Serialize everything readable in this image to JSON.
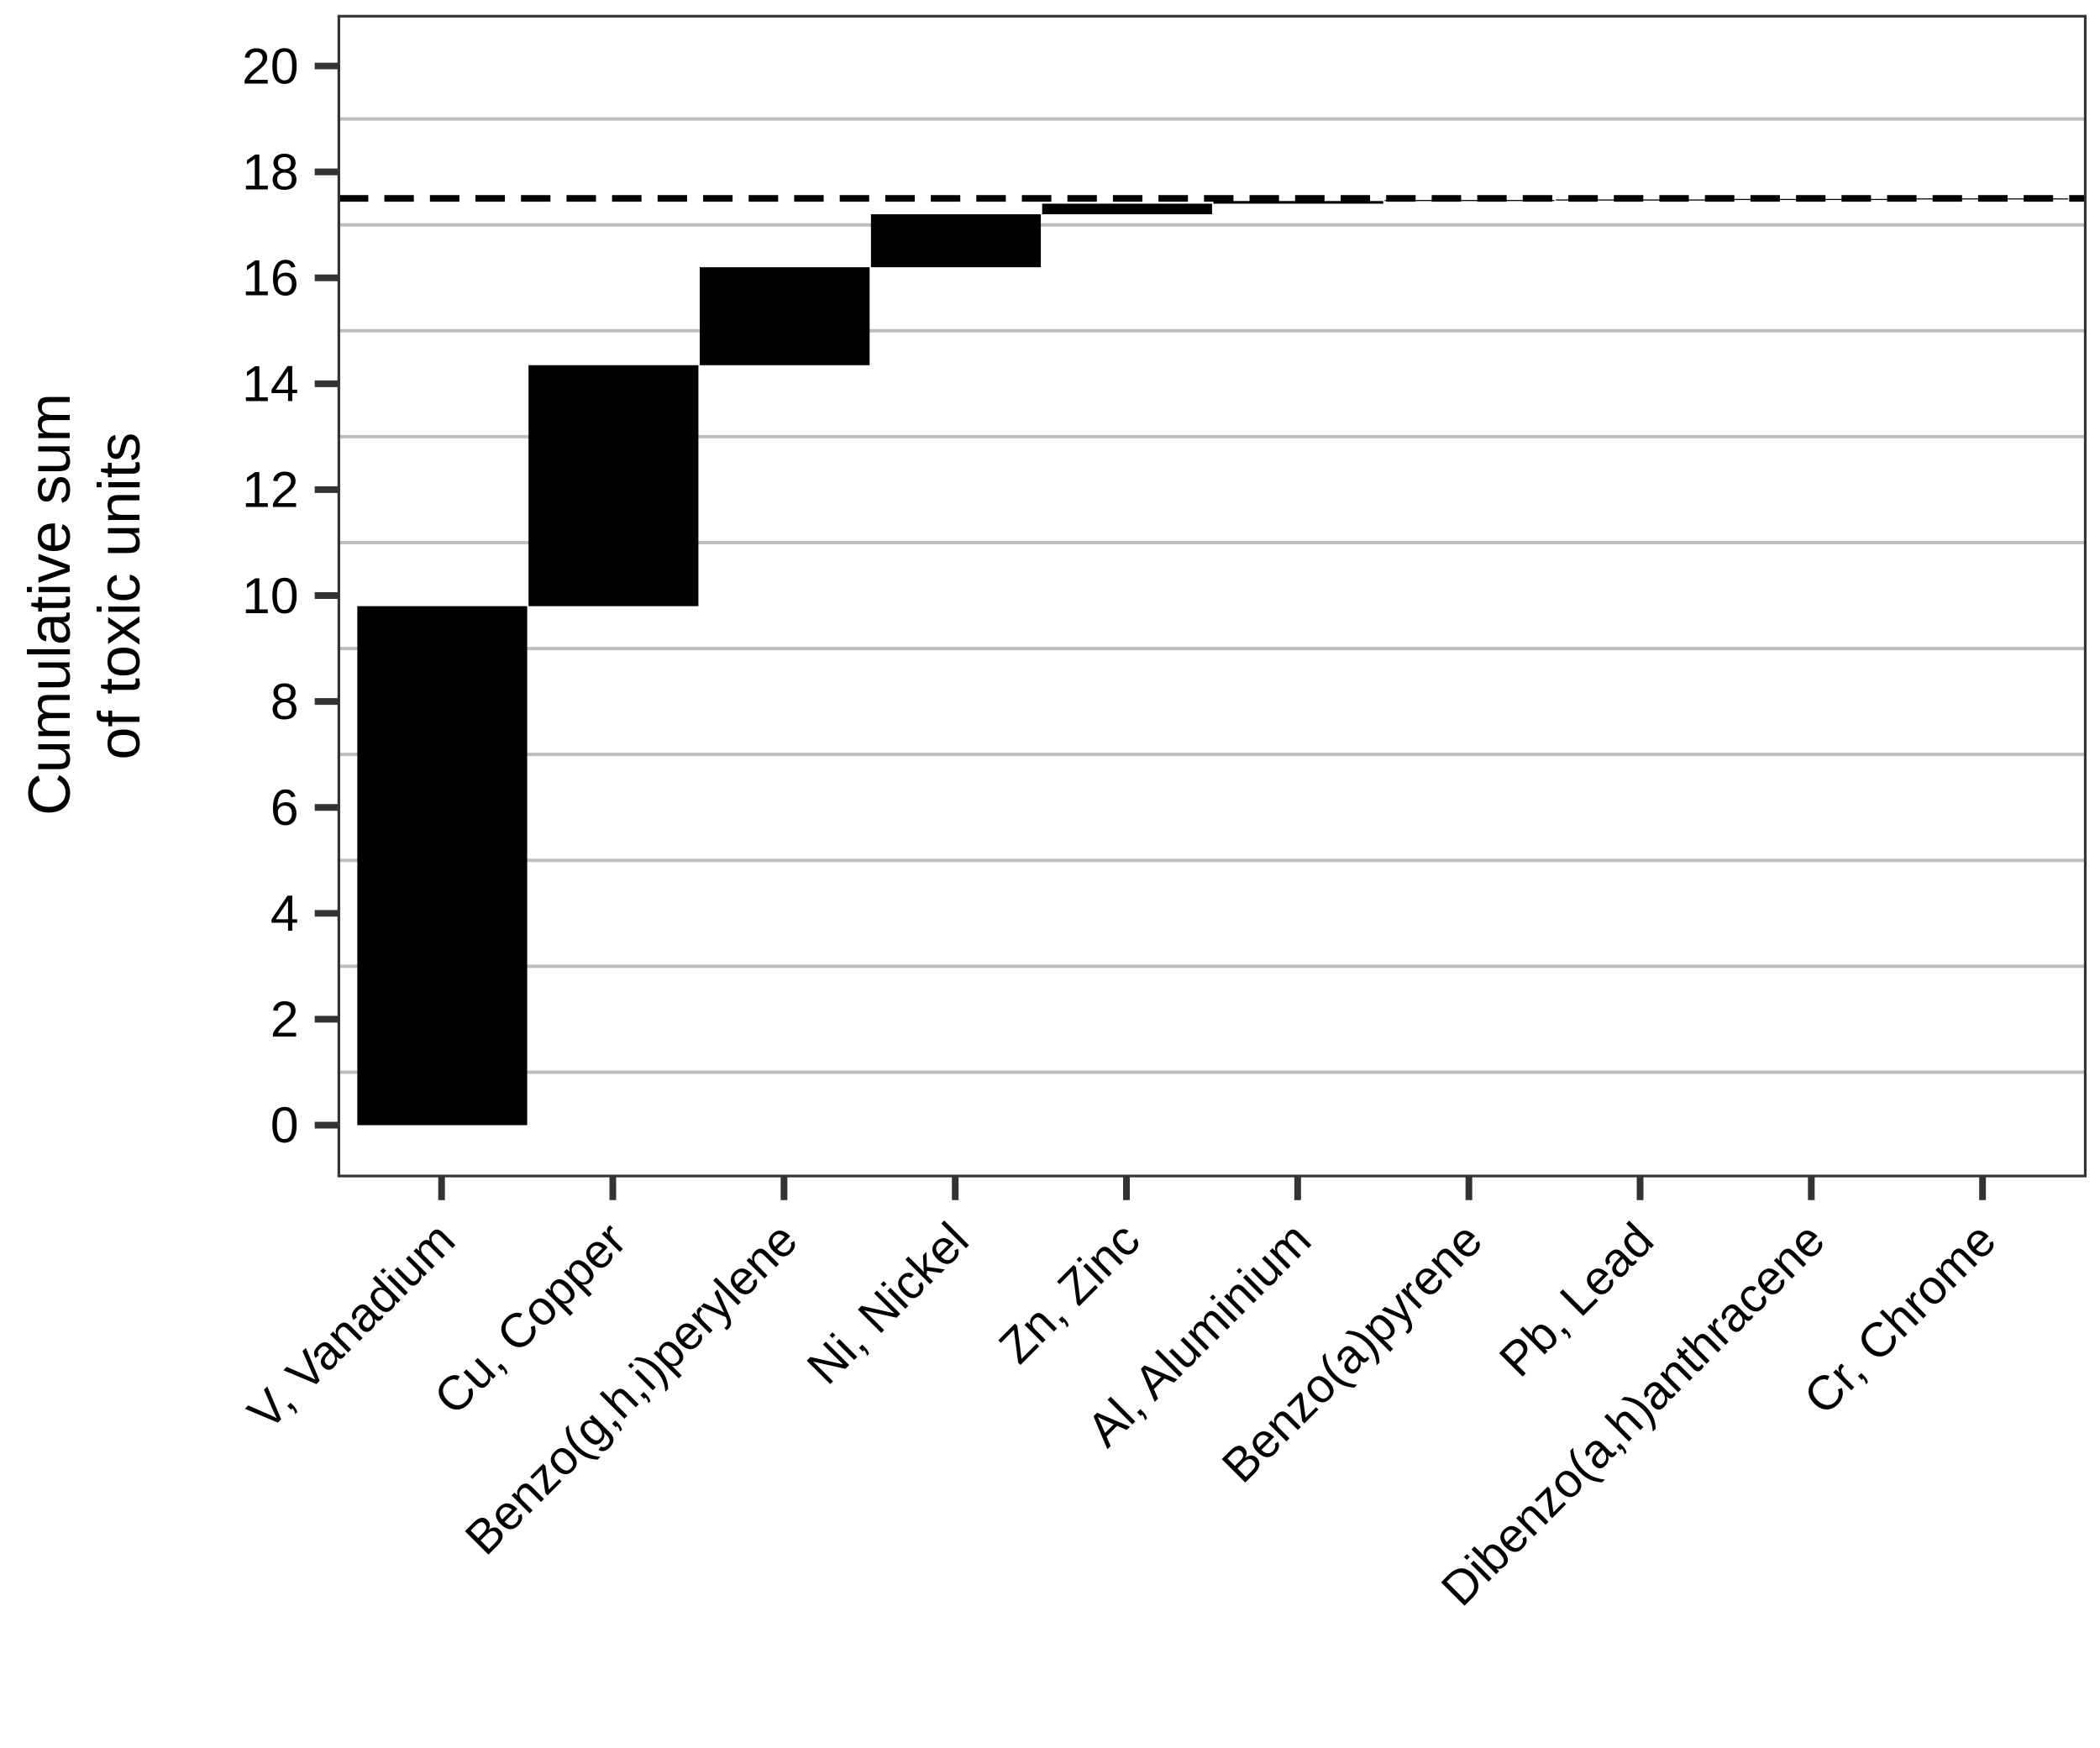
{
  "chart_data": {
    "type": "waterfall",
    "y_label": [
      "Cumulative sum",
      "of toxic units"
    ],
    "categories": [
      "V, Vanadium",
      "Cu, Copper",
      "Benzo(g,h,i)perylene",
      "Ni, Nickel",
      "Zn, Zinc",
      "Al, Aluminium",
      "Benzo(a)pyrene",
      "Pb, Lead",
      "Dibenzo(a,h)anthracene",
      "Cr, Chrome"
    ],
    "values": [
      9.8,
      4.55,
      1.85,
      1.0,
      0.2,
      0.05,
      0.02,
      0.01,
      0.01,
      0.01
    ],
    "color": "#000000",
    "reference_line": 17.5,
    "ylim": [
      -0.96,
      20.94
    ],
    "yticks": [
      0,
      2,
      4,
      6,
      8,
      10,
      12,
      14,
      16,
      18,
      20
    ],
    "grid_lines": [
      1,
      3,
      5,
      7,
      9,
      11,
      13,
      15,
      17,
      19
    ]
  }
}
